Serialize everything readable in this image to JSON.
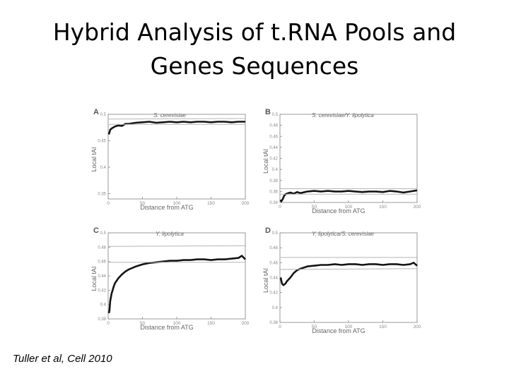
{
  "slide": {
    "title_line1": "Hybrid Analysis of t.RNA  Pools and",
    "title_line2": "Genes Sequences",
    "citation": "Tuller et al, Cell 2010"
  },
  "chart_data": [
    {
      "type": "line",
      "panel_label": "A",
      "title": "S. cerevisiae",
      "xlabel": "Distance from ATG",
      "ylabel": "Local tAI",
      "xlim": [
        0,
        200
      ],
      "ylim": [
        0.34,
        0.5
      ],
      "x_ticks": [
        0,
        50,
        100,
        150,
        200
      ],
      "y_ticks": [
        0.35,
        0.4,
        0.45,
        0.5
      ],
      "series": [
        {
          "role": "mean",
          "x": [
            1,
            3,
            6,
            10,
            15,
            20,
            25,
            30,
            40,
            50,
            60,
            70,
            80,
            90,
            100,
            110,
            120,
            130,
            140,
            150,
            160,
            170,
            180,
            190,
            200
          ],
          "y": [
            0.462,
            0.471,
            0.474,
            0.477,
            0.479,
            0.478,
            0.482,
            0.482,
            0.484,
            0.485,
            0.486,
            0.484,
            0.485,
            0.486,
            0.485,
            0.486,
            0.485,
            0.486,
            0.486,
            0.485,
            0.486,
            0.486,
            0.485,
            0.486,
            0.486
          ]
        },
        {
          "role": "upper-bound",
          "x": [
            0,
            200
          ],
          "y": [
            0.491,
            0.492
          ]
        },
        {
          "role": "lower-bound",
          "x": [
            0,
            200
          ],
          "y": [
            0.481,
            0.481
          ]
        }
      ]
    },
    {
      "type": "line",
      "panel_label": "B",
      "title": "S. cerevisiae/Y. lipolytica",
      "xlabel": "Distance from ATG",
      "ylabel": "Local tAI",
      "xlim": [
        0,
        200
      ],
      "ylim": [
        0.34,
        0.5
      ],
      "x_ticks": [
        0,
        50,
        100,
        150,
        200
      ],
      "y_ticks": [
        0.34,
        0.36,
        0.38,
        0.4,
        0.42,
        0.44,
        0.46,
        0.48,
        0.5
      ],
      "series": [
        {
          "role": "mean",
          "x": [
            1,
            2,
            4,
            6,
            8,
            10,
            15,
            20,
            25,
            30,
            40,
            50,
            60,
            70,
            80,
            90,
            100,
            110,
            120,
            130,
            140,
            150,
            160,
            170,
            180,
            190,
            200
          ],
          "y": [
            0.345,
            0.342,
            0.346,
            0.352,
            0.355,
            0.356,
            0.358,
            0.356,
            0.359,
            0.357,
            0.36,
            0.361,
            0.36,
            0.361,
            0.36,
            0.36,
            0.361,
            0.36,
            0.359,
            0.36,
            0.36,
            0.359,
            0.361,
            0.36,
            0.358,
            0.36,
            0.362
          ]
        },
        {
          "role": "upper-bound",
          "x": [
            0,
            200
          ],
          "y": [
            0.365,
            0.365
          ]
        },
        {
          "role": "lower-bound",
          "x": [
            0,
            200
          ],
          "y": [
            0.355,
            0.355
          ]
        }
      ]
    },
    {
      "type": "line",
      "panel_label": "C",
      "title": "Y. lipolytica",
      "xlabel": "Distance from ATG",
      "ylabel": "Local tAI",
      "xlim": [
        0,
        200
      ],
      "ylim": [
        0.38,
        0.5
      ],
      "x_ticks": [
        0,
        50,
        100,
        150,
        200
      ],
      "y_ticks": [
        0.38,
        0.4,
        0.42,
        0.44,
        0.46,
        0.48,
        0.5
      ],
      "series": [
        {
          "role": "mean",
          "x": [
            1,
            2,
            3,
            5,
            8,
            10,
            15,
            20,
            25,
            30,
            40,
            50,
            60,
            70,
            80,
            90,
            100,
            110,
            120,
            130,
            140,
            150,
            160,
            170,
            180,
            190,
            195,
            200
          ],
          "y": [
            0.388,
            0.392,
            0.405,
            0.415,
            0.425,
            0.43,
            0.437,
            0.442,
            0.446,
            0.449,
            0.453,
            0.456,
            0.458,
            0.459,
            0.46,
            0.461,
            0.461,
            0.462,
            0.462,
            0.463,
            0.463,
            0.462,
            0.463,
            0.463,
            0.464,
            0.465,
            0.468,
            0.463
          ]
        },
        {
          "role": "upper-bound",
          "x": [
            0,
            200
          ],
          "y": [
            0.481,
            0.482
          ]
        },
        {
          "role": "lower-bound",
          "x": [
            0,
            200
          ],
          "y": [
            0.459,
            0.459
          ]
        }
      ]
    },
    {
      "type": "line",
      "panel_label": "D",
      "title": "Y. lipolytica/S. cerevisiae",
      "xlabel": "Distance from ATG",
      "ylabel": "Local tAI",
      "xlim": [
        0,
        200
      ],
      "ylim": [
        0.38,
        0.5
      ],
      "x_ticks": [
        0,
        50,
        100,
        150,
        200
      ],
      "y_ticks": [
        0.38,
        0.4,
        0.42,
        0.44,
        0.46,
        0.48,
        0.5
      ],
      "series": [
        {
          "role": "mean",
          "x": [
            1,
            3,
            5,
            8,
            10,
            15,
            20,
            25,
            30,
            40,
            50,
            60,
            70,
            80,
            90,
            100,
            110,
            120,
            130,
            140,
            150,
            160,
            170,
            180,
            190,
            195,
            200
          ],
          "y": [
            0.44,
            0.432,
            0.43,
            0.432,
            0.435,
            0.44,
            0.446,
            0.45,
            0.452,
            0.455,
            0.456,
            0.457,
            0.457,
            0.458,
            0.457,
            0.458,
            0.458,
            0.457,
            0.458,
            0.458,
            0.457,
            0.458,
            0.458,
            0.457,
            0.458,
            0.46,
            0.456
          ]
        },
        {
          "role": "upper-bound",
          "x": [
            0,
            200
          ],
          "y": [
            0.467,
            0.467
          ]
        },
        {
          "role": "lower-bound",
          "x": [
            0,
            200
          ],
          "y": [
            0.451,
            0.452
          ]
        }
      ]
    }
  ]
}
